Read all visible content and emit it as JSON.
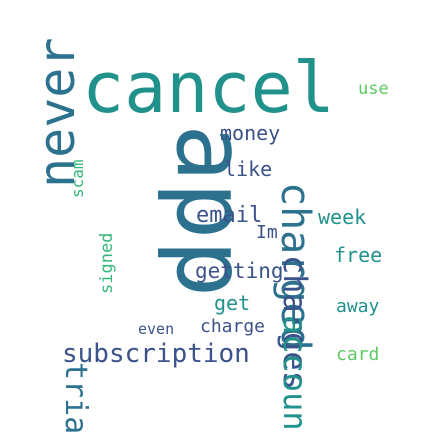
{
  "words": [
    {
      "text": "cancel",
      "color": "#21918c"
    },
    {
      "text": "use",
      "color": "#5ec962"
    },
    {
      "text": "app",
      "color": "#2c728e"
    },
    {
      "text": "money",
      "color": "#3b528b"
    },
    {
      "text": "scam",
      "color": "#35b779"
    },
    {
      "text": "like",
      "color": "#3b528b"
    },
    {
      "text": "never",
      "color": "#2c728e"
    },
    {
      "text": "email",
      "color": "#3b528b"
    },
    {
      "text": "Im",
      "color": "#3b528b"
    },
    {
      "text": "week",
      "color": "#21918c"
    },
    {
      "text": "free",
      "color": "#21918c"
    },
    {
      "text": "getting",
      "color": "#3b528b"
    },
    {
      "text": "signed",
      "color": "#35b779"
    },
    {
      "text": "get",
      "color": "#21918c"
    },
    {
      "text": "away",
      "color": "#21918c"
    },
    {
      "text": "charge",
      "color": "#3b528b"
    },
    {
      "text": "even",
      "color": "#3b528b"
    },
    {
      "text": "subscription",
      "color": "#3b528b"
    },
    {
      "text": "card",
      "color": "#5ec962"
    },
    {
      "text": "charged",
      "color": "#2c728e"
    },
    {
      "text": "charges",
      "color": "#3b528b"
    },
    {
      "text": "account",
      "color": "#21918c"
    },
    {
      "text": "trial",
      "color": "#2c728e"
    }
  ]
}
